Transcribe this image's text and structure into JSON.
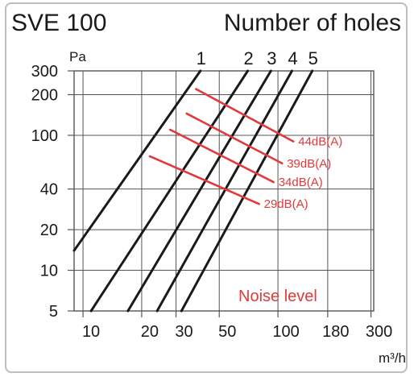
{
  "chart_data": {
    "type": "line",
    "title": "SVE 100",
    "subtitle": "Number of holes",
    "xlabel": "m³/h",
    "ylabel": "Pa",
    "xscale": "log",
    "yscale": "log",
    "xlim": [
      9,
      310
    ],
    "ylim": [
      5,
      300
    ],
    "x_ticks": [
      10,
      20,
      30,
      50,
      100,
      180,
      300
    ],
    "x_tick_labels": [
      "10",
      "20",
      "30",
      "50",
      "100",
      "180",
      "300"
    ],
    "y_ticks": [
      5,
      10,
      20,
      40,
      100,
      200,
      300
    ],
    "y_tick_labels": [
      "5",
      "10",
      "20",
      "40",
      "100",
      "200",
      "300"
    ],
    "grid": true,
    "series": [
      {
        "name": "1",
        "points": [
          [
            9,
            14
          ],
          [
            40,
            300
          ]
        ]
      },
      {
        "name": "2",
        "points": [
          [
            11,
            5
          ],
          [
            70,
            300
          ]
        ]
      },
      {
        "name": "3",
        "points": [
          [
            17,
            5
          ],
          [
            92,
            300
          ]
        ]
      },
      {
        "name": "4",
        "points": [
          [
            24,
            5
          ],
          [
            118,
            300
          ]
        ]
      },
      {
        "name": "5",
        "points": [
          [
            32,
            5
          ],
          [
            150,
            300
          ]
        ]
      }
    ],
    "noise_level": {
      "title": "Noise level",
      "color": "#e03a3a",
      "lines": [
        {
          "name": "44dB(A)",
          "points": [
            [
              38,
              220
            ],
            [
              120,
              90
            ]
          ]
        },
        {
          "name": "39dB(A)",
          "points": [
            [
              34,
              145
            ],
            [
              105,
              62
            ]
          ]
        },
        {
          "name": "34dB(A)",
          "points": [
            [
              28,
              110
            ],
            [
              95,
              45
            ]
          ]
        },
        {
          "name": "29dB(A)",
          "points": [
            [
              22,
              70
            ],
            [
              80,
              31
            ]
          ]
        }
      ]
    },
    "colors": {
      "curves": "#1a1a1a",
      "noise": "#e03a3a",
      "grid": "#555555"
    }
  }
}
